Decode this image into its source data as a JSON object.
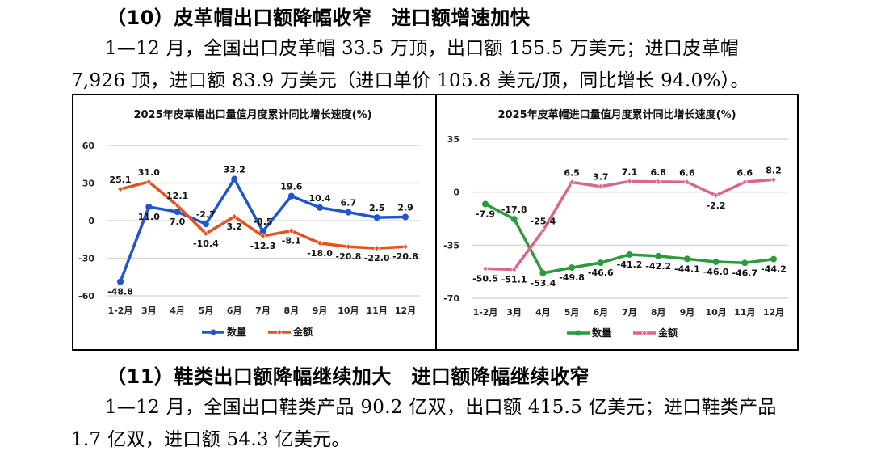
{
  "section10": {
    "heading": "（10）皮革帽出口额降幅收窄　进口额增速加快",
    "para_line1": "1—12 月，全国出口皮革帽 33.5 万顶，出口额 155.5 万美元；进口皮革帽",
    "para_line2": "7,926 顶，进口额 83.9 万美元（进口单价 105.8 美元/顶，同比增长 94.0%）。"
  },
  "section11": {
    "heading": "（11）鞋类出口额降幅继续加大　进口额降幅继续收窄",
    "para_line1": "1—12 月，全国出口鞋类产品 90.2 亿双，出口额 415.5 亿美元；进口鞋类产品",
    "para_line2": "1.7 亿双，进口额 54.3 亿美元。"
  },
  "chart_data": [
    {
      "type": "line",
      "title": "2025年皮革帽出口量值月度累计同比增长速度(%)",
      "categories": [
        "1-2月",
        "3月",
        "4月",
        "5月",
        "6月",
        "7月",
        "8月",
        "9月",
        "10月",
        "11月",
        "12月"
      ],
      "ylim": [
        -60,
        60
      ],
      "yticks": [
        60,
        30,
        0,
        -30,
        -60
      ],
      "grid": true,
      "legend": "bottom",
      "series": [
        {
          "name": "数量",
          "color": "#2255CC",
          "marker": "circle",
          "values": [
            -48.8,
            11.0,
            7.0,
            -2.7,
            33.2,
            -8.5,
            19.6,
            10.4,
            6.7,
            2.5,
            2.9
          ],
          "labels": [
            "-48.8",
            "11.0",
            "7.0",
            "-2.7",
            "33.2",
            "-8.5",
            "19.6",
            "10.4",
            "6.7",
            "2.5",
            "2.9"
          ],
          "label_pos": [
            "below",
            "below",
            "below",
            "above",
            "above",
            "above",
            "above",
            "above",
            "above",
            "above",
            "above"
          ]
        },
        {
          "name": "金额",
          "color": "#E8501E",
          "marker": "diamond",
          "values": [
            25.1,
            31.0,
            12.1,
            -10.4,
            3.2,
            -12.3,
            -8.1,
            -18.0,
            -20.8,
            -22.0,
            -20.8
          ],
          "labels": [
            "25.1",
            "31.0",
            "12.1",
            "-10.4",
            "3.2",
            "-12.3",
            "-8.1",
            "-18.0",
            "-20.8",
            "-22.0",
            "-20.8"
          ],
          "label_pos": [
            "above",
            "above",
            "above",
            "below",
            "below",
            "below",
            "below",
            "below",
            "below",
            "below",
            "below"
          ]
        }
      ]
    },
    {
      "type": "line",
      "title": "2025年皮革帽进口量值月度累计同比增长速度(%)",
      "categories": [
        "1-2月",
        "3月",
        "4月",
        "5月",
        "6月",
        "7月",
        "8月",
        "9月",
        "10月",
        "11月",
        "12月"
      ],
      "ylim": [
        -70,
        35
      ],
      "yticks": [
        35,
        0,
        -35,
        -70
      ],
      "grid": true,
      "legend": "bottom",
      "series": [
        {
          "name": "数量",
          "color": "#2E9A3E",
          "marker": "circle",
          "values": [
            -7.9,
            -17.8,
            -53.4,
            -49.8,
            -46.6,
            -41.2,
            -42.2,
            -44.1,
            -46.0,
            -46.7,
            -44.2
          ],
          "labels": [
            "-7.9",
            "-17.8",
            "-53.4",
            "-49.8",
            "-46.6",
            "-41.2",
            "-42.2",
            "-44.1",
            "-46.0",
            "-46.7",
            "-44.2"
          ],
          "label_pos": [
            "below",
            "above",
            "below",
            "below",
            "below",
            "below",
            "below",
            "below",
            "below",
            "below",
            "below"
          ]
        },
        {
          "name": "金额",
          "color": "#D9668E",
          "marker": "diamond",
          "values": [
            -50.5,
            -51.1,
            -25.4,
            6.5,
            3.7,
            7.1,
            6.8,
            6.6,
            -2.2,
            6.6,
            8.2
          ],
          "labels": [
            "-50.5",
            "-51.1",
            "-25.4",
            "6.5",
            "3.7",
            "7.1",
            "6.8",
            "6.6",
            "-2.2",
            "6.6",
            "8.2"
          ],
          "label_pos": [
            "below",
            "below",
            "above",
            "above",
            "above",
            "above",
            "above",
            "above",
            "below",
            "above",
            "above"
          ]
        }
      ]
    }
  ]
}
